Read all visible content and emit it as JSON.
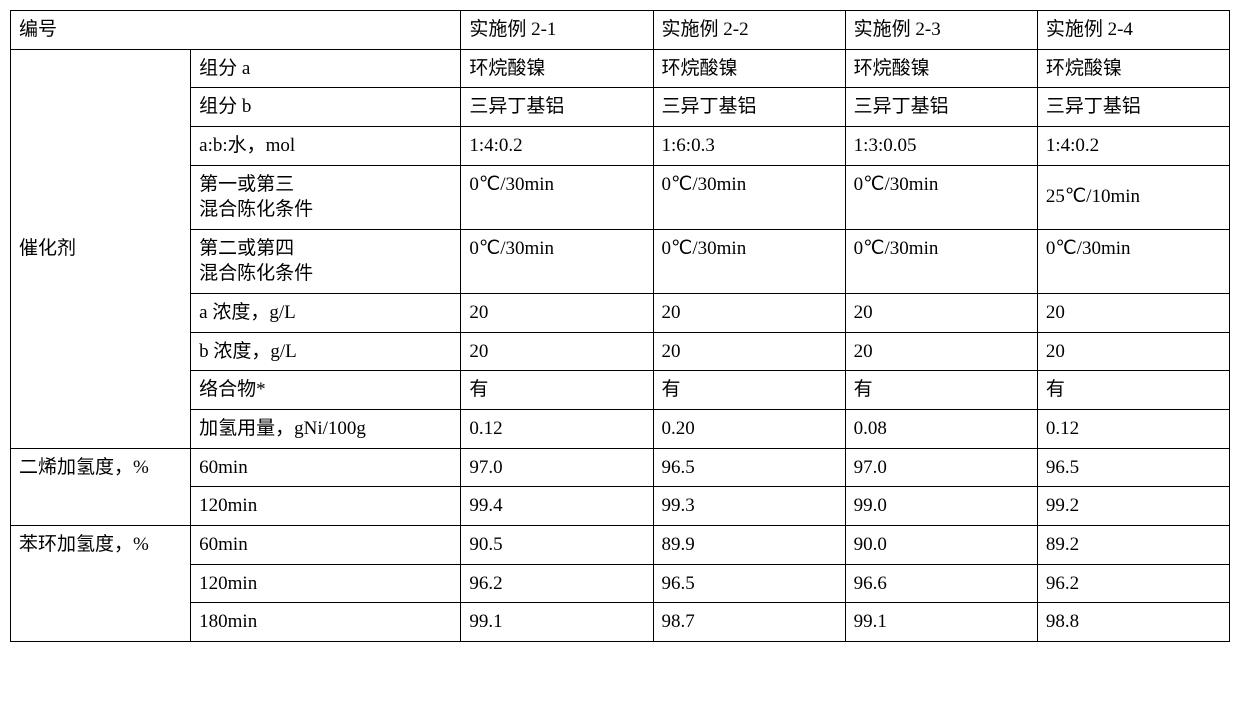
{
  "header": {
    "bianhao": "编号",
    "col1": "实施例 2-1",
    "col2": "实施例 2-2",
    "col3": "实施例 2-3",
    "col4": "实施例 2-4"
  },
  "catalyst": {
    "group_label": "催化剂",
    "rows": {
      "comp_a": {
        "label": "组分 a",
        "v": [
          "环烷酸镍",
          "环烷酸镍",
          "环烷酸镍",
          "环烷酸镍"
        ]
      },
      "comp_b": {
        "label": "组分 b",
        "v": [
          "三异丁基铝",
          "三异丁基铝",
          "三异丁基铝",
          "三异丁基铝"
        ]
      },
      "ratio": {
        "label": "a:b:水，mol",
        "v": [
          "1:4:0.2",
          "1:6:0.3",
          "1:3:0.05",
          "1:4:0.2"
        ]
      },
      "mix13": {
        "label": "第一或第三\n混合陈化条件",
        "v": [
          "0℃/30min",
          "0℃/30min",
          "0℃/30min",
          "25℃/10min"
        ]
      },
      "mix24": {
        "label": "第二或第四\n混合陈化条件",
        "v": [
          "0℃/30min",
          "0℃/30min",
          "0℃/30min",
          "0℃/30min"
        ]
      },
      "conc_a": {
        "label": "a 浓度，g/L",
        "v": [
          "20",
          "20",
          "20",
          "20"
        ]
      },
      "conc_b": {
        "label": "b 浓度，g/L",
        "v": [
          "20",
          "20",
          "20",
          "20"
        ]
      },
      "complex": {
        "label": "络合物*",
        "v": [
          "有",
          "有",
          "有",
          "有"
        ]
      },
      "dosage": {
        "label": "加氢用量，gNi/100g",
        "v": [
          "0.12",
          "0.20",
          "0.08",
          "0.12"
        ]
      }
    }
  },
  "diene": {
    "group_label": "二烯加氢度，%",
    "rows": {
      "t60": {
        "label": "60min",
        "v": [
          "97.0",
          "96.5",
          "97.0",
          "96.5"
        ]
      },
      "t120": {
        "label": "120min",
        "v": [
          "99.4",
          "99.3",
          "99.0",
          "99.2"
        ]
      }
    }
  },
  "benzene": {
    "group_label": "苯环加氢度，%",
    "rows": {
      "t60": {
        "label": "60min",
        "v": [
          "90.5",
          "89.9",
          "90.0",
          "89.2"
        ]
      },
      "t120": {
        "label": "120min",
        "v": [
          "96.2",
          "96.5",
          "96.6",
          "96.2"
        ]
      },
      "t180": {
        "label": "180min",
        "v": [
          "99.1",
          "98.7",
          "99.1",
          "98.8"
        ]
      }
    }
  },
  "style": {
    "border_color": "#000000",
    "bg_color": "#ffffff",
    "font_size_pt": 14,
    "font_family": "SimSun"
  }
}
